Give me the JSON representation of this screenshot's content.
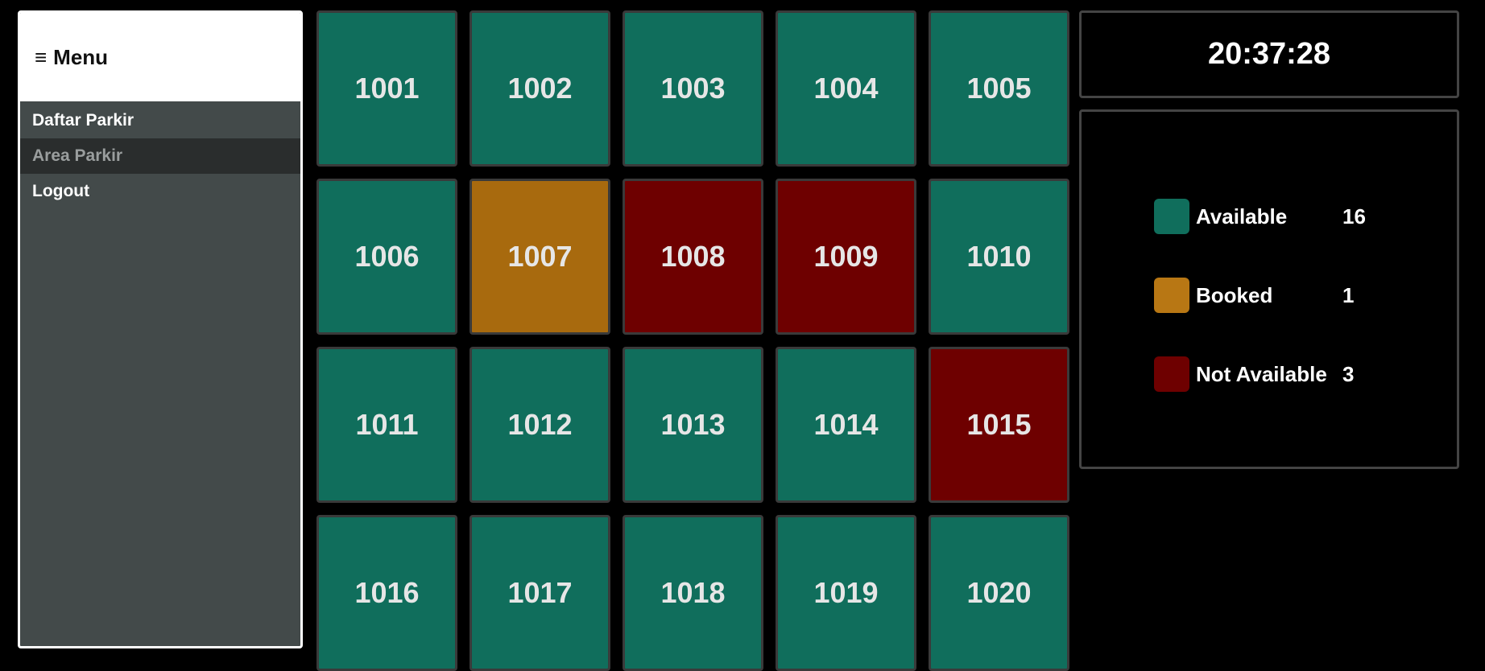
{
  "sidebar": {
    "title": "Menu",
    "hamburger_glyph": "≡",
    "items": [
      {
        "label": "Daftar Parkir",
        "active": false
      },
      {
        "label": "Area Parkir",
        "active": true
      },
      {
        "label": "Logout",
        "active": false
      }
    ]
  },
  "colors": {
    "available": "#106e5c",
    "booked": "#a86a0e",
    "not_available": "#6e0000"
  },
  "slots": [
    {
      "id": "1001",
      "status": "available"
    },
    {
      "id": "1002",
      "status": "available"
    },
    {
      "id": "1003",
      "status": "available"
    },
    {
      "id": "1004",
      "status": "available"
    },
    {
      "id": "1005",
      "status": "available"
    },
    {
      "id": "1006",
      "status": "available"
    },
    {
      "id": "1007",
      "status": "booked"
    },
    {
      "id": "1008",
      "status": "not_available"
    },
    {
      "id": "1009",
      "status": "not_available"
    },
    {
      "id": "1010",
      "status": "available"
    },
    {
      "id": "1011",
      "status": "available"
    },
    {
      "id": "1012",
      "status": "available"
    },
    {
      "id": "1013",
      "status": "available"
    },
    {
      "id": "1014",
      "status": "available"
    },
    {
      "id": "1015",
      "status": "not_available"
    },
    {
      "id": "1016",
      "status": "available"
    },
    {
      "id": "1017",
      "status": "available"
    },
    {
      "id": "1018",
      "status": "available"
    },
    {
      "id": "1019",
      "status": "available"
    },
    {
      "id": "1020",
      "status": "available"
    }
  ],
  "clock": {
    "time": "20:37:28"
  },
  "legend": [
    {
      "label": "Available",
      "count": "16",
      "color": "#106e5c"
    },
    {
      "label": "Booked",
      "count": "1",
      "color": "#b87714"
    },
    {
      "label": "Not Available",
      "count": "3",
      "color": "#6e0000"
    }
  ]
}
